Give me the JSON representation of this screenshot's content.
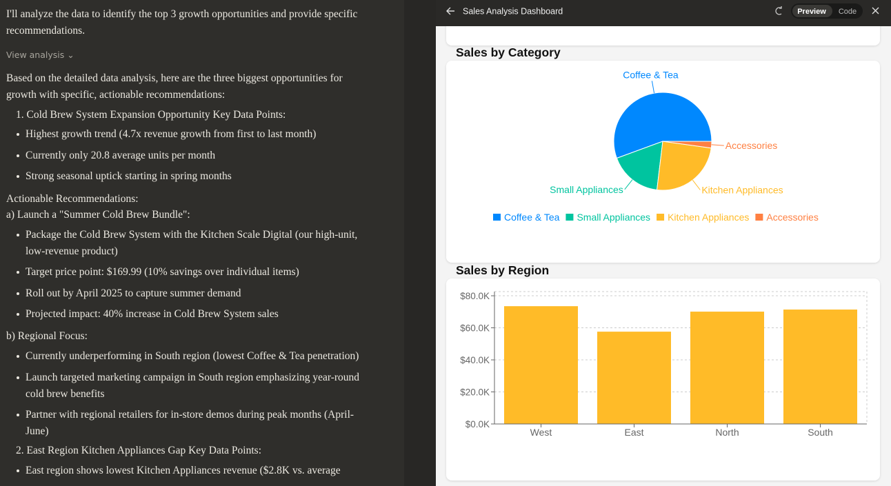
{
  "chat": {
    "lines": [
      "I'll analyze the data to identify the top 3 growth opportunities and provide specific recommendations.",
      "View analysis",
      "Based on the detailed data analysis, here are the three biggest opportunities for growth with specific, actionable recommendations:",
      "1. Cold Brew System Expansion Opportunity Key Data Points:",
      "Highest growth trend (4.7x revenue growth from first to last month)",
      "Currently only 20.8 average units per month",
      "Strong seasonal uptick starting in spring months",
      "Actionable Recommendations:",
      "a) Launch a \"Summer Cold Brew Bundle\":",
      "Package the Cold Brew System with the Kitchen Scale Digital (our high-unit, low-revenue product)",
      "Target price point: $169.99 (10% savings over individual items)",
      "Roll out by April 2025 to capture summer demand",
      "Projected impact: 40% increase in Cold Brew System sales",
      "b) Regional Focus:",
      "Currently underperforming in South region (lowest Coffee & Tea penetration)",
      "Launch targeted marketing campaign in South region emphasizing year-round cold brew benefits",
      "Partner with regional retailers for in-store demos during peak months (April-June)",
      "2. East Region Kitchen Appliances Gap Key Data Points:",
      "East region shows lowest Kitchen Appliances revenue ($2.8K vs. average"
    ]
  },
  "dashboard": {
    "title": "Sales Analysis Dashboard",
    "tabs": [
      "Preview",
      "Code"
    ]
  },
  "chart_data": [
    {
      "type": "pie",
      "title": "Sales by Category",
      "categories": [
        "Coffee & Tea",
        "Small Appliances",
        "Kitchen Appliances",
        "Accessories"
      ],
      "values": [
        55.6,
        17.5,
        24.7,
        2.2
      ],
      "colors": [
        "#0088fe",
        "#00c49f",
        "#ffbb28",
        "#ff8042"
      ],
      "legend": "bottom"
    },
    {
      "type": "bar",
      "title": "Sales by Region",
      "categories": [
        "West",
        "East",
        "North",
        "South"
      ],
      "values": [
        73500,
        57600,
        70100,
        71400
      ],
      "color": "#ffbb28",
      "ylim": [
        0,
        82600
      ],
      "yticks": [
        {
          "value": 0,
          "label": "$0.0K"
        },
        {
          "value": 20000,
          "label": "$20.0K"
        },
        {
          "value": 40000,
          "label": "$40.0K"
        },
        {
          "value": 60000,
          "label": "$60.0K"
        },
        {
          "value": 80000,
          "label": "$80.0K"
        }
      ],
      "grid": true
    }
  ]
}
